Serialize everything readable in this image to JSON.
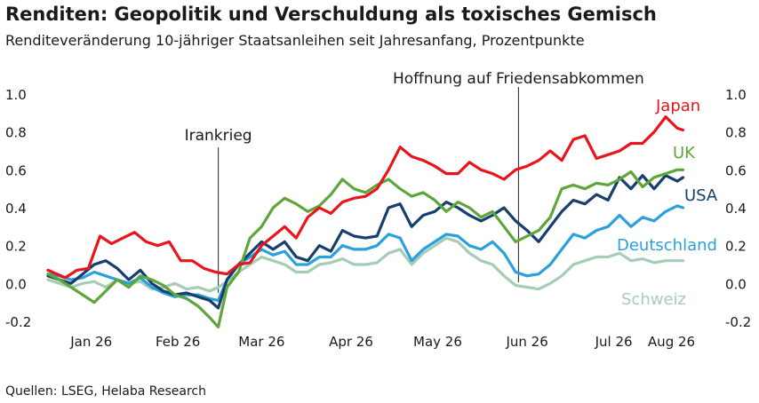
{
  "title": "Renditen: Geopolitik und Verschuldung als toxisches Gemisch",
  "subtitle": "Renditeveränderung 10-jähriger Staatsanleihen seit Jahresanfang, Prozentpunkte",
  "source": "Quellen: LSEG, Helaba Research",
  "colors": {
    "japan": "#e8151b",
    "uk": "#5ea63a",
    "usa": "#163f6e",
    "deutschland": "#2aa0dd",
    "schweiz": "#a7ccb4"
  },
  "chart_data": {
    "type": "line",
    "ylim": [
      -0.2,
      1.0
    ],
    "y_ticks": [
      "1.0",
      "0.8",
      "0.6",
      "0.4",
      "0.2",
      "0.0",
      "-0.2"
    ],
    "x_tick_labels": [
      "Jan 26",
      "Feb 26",
      "Mar 26",
      "Apr 26",
      "May 26",
      "Jun 26",
      "Jul 26",
      "Aug 26"
    ],
    "x_range_days": [
      0,
      222
    ],
    "annotations": [
      {
        "text": "Irankrieg",
        "day": 59
      },
      {
        "text": "Hoffnung auf Friedensabkommen",
        "day": 163
      }
    ],
    "series": [
      {
        "name": "Japan",
        "key": "japan",
        "x": [
          0,
          6,
          10,
          14,
          18,
          22,
          26,
          30,
          34,
          38,
          42,
          46,
          50,
          54,
          58,
          62,
          66,
          70,
          74,
          78,
          82,
          86,
          90,
          94,
          98,
          102,
          106,
          110,
          114,
          118,
          122,
          126,
          130,
          134,
          138,
          142,
          146,
          150,
          154,
          158,
          162,
          166,
          170,
          174,
          178,
          182,
          186,
          190,
          194,
          198,
          202,
          206,
          210,
          214,
          218,
          220
        ],
        "y": [
          0.07,
          0.03,
          0.07,
          0.08,
          0.25,
          0.21,
          0.24,
          0.27,
          0.22,
          0.2,
          0.22,
          0.12,
          0.12,
          0.08,
          0.06,
          0.05,
          0.1,
          0.11,
          0.2,
          0.25,
          0.3,
          0.24,
          0.35,
          0.4,
          0.37,
          0.43,
          0.45,
          0.46,
          0.5,
          0.6,
          0.72,
          0.67,
          0.65,
          0.62,
          0.58,
          0.58,
          0.64,
          0.6,
          0.58,
          0.55,
          0.6,
          0.62,
          0.65,
          0.7,
          0.65,
          0.76,
          0.78,
          0.66,
          0.68,
          0.7,
          0.74,
          0.74,
          0.8,
          0.88,
          0.82,
          0.81
        ]
      },
      {
        "name": "UK",
        "key": "uk",
        "x": [
          0,
          4,
          8,
          12,
          16,
          20,
          24,
          28,
          32,
          36,
          40,
          44,
          48,
          52,
          56,
          59,
          62,
          66,
          70,
          74,
          78,
          82,
          86,
          90,
          94,
          98,
          102,
          106,
          110,
          114,
          118,
          122,
          126,
          130,
          134,
          138,
          142,
          146,
          150,
          154,
          158,
          162,
          166,
          170,
          174,
          178,
          182,
          186,
          190,
          194,
          198,
          202,
          206,
          210,
          214,
          218,
          220
        ],
        "y": [
          0.05,
          0.02,
          -0.02,
          -0.06,
          -0.1,
          -0.04,
          0.02,
          -0.02,
          0.04,
          0.02,
          -0.01,
          -0.06,
          -0.08,
          -0.12,
          -0.18,
          -0.23,
          -0.02,
          0.06,
          0.24,
          0.3,
          0.4,
          0.45,
          0.42,
          0.38,
          0.41,
          0.47,
          0.55,
          0.5,
          0.48,
          0.52,
          0.55,
          0.5,
          0.46,
          0.48,
          0.44,
          0.38,
          0.43,
          0.4,
          0.35,
          0.38,
          0.3,
          0.22,
          0.25,
          0.28,
          0.35,
          0.5,
          0.52,
          0.5,
          0.53,
          0.52,
          0.55,
          0.59,
          0.51,
          0.56,
          0.58,
          0.6,
          0.6
        ]
      },
      {
        "name": "USA",
        "key": "usa",
        "x": [
          0,
          4,
          8,
          12,
          16,
          20,
          24,
          28,
          32,
          36,
          40,
          44,
          48,
          52,
          56,
          59,
          62,
          66,
          70,
          74,
          78,
          82,
          86,
          90,
          94,
          98,
          102,
          106,
          110,
          114,
          118,
          122,
          126,
          130,
          134,
          138,
          142,
          146,
          150,
          154,
          158,
          162,
          166,
          170,
          174,
          178,
          182,
          186,
          190,
          194,
          198,
          202,
          206,
          210,
          214,
          218,
          220
        ],
        "y": [
          0.04,
          0.02,
          0.0,
          0.05,
          0.1,
          0.12,
          0.08,
          0.02,
          0.07,
          0.0,
          -0.04,
          -0.06,
          -0.05,
          -0.07,
          -0.09,
          -0.13,
          0.02,
          0.1,
          0.16,
          0.22,
          0.18,
          0.22,
          0.14,
          0.12,
          0.2,
          0.17,
          0.28,
          0.25,
          0.24,
          0.25,
          0.4,
          0.42,
          0.3,
          0.36,
          0.38,
          0.43,
          0.4,
          0.36,
          0.33,
          0.36,
          0.4,
          0.33,
          0.28,
          0.22,
          0.3,
          0.38,
          0.44,
          0.42,
          0.47,
          0.44,
          0.56,
          0.5,
          0.57,
          0.5,
          0.57,
          0.54,
          0.56
        ]
      },
      {
        "name": "Deutschland",
        "key": "deutschland",
        "x": [
          0,
          4,
          8,
          12,
          16,
          20,
          24,
          28,
          32,
          36,
          40,
          44,
          48,
          52,
          56,
          59,
          62,
          66,
          70,
          74,
          78,
          82,
          86,
          90,
          94,
          98,
          102,
          106,
          110,
          114,
          118,
          122,
          126,
          130,
          134,
          138,
          142,
          146,
          150,
          154,
          158,
          162,
          166,
          170,
          174,
          178,
          182,
          186,
          190,
          194,
          198,
          202,
          206,
          210,
          214,
          218,
          220
        ],
        "y": [
          0.05,
          0.04,
          0.02,
          0.03,
          0.06,
          0.04,
          0.02,
          0.0,
          0.03,
          -0.02,
          -0.05,
          -0.07,
          -0.06,
          -0.06,
          -0.08,
          -0.09,
          0.02,
          0.1,
          0.14,
          0.18,
          0.15,
          0.17,
          0.1,
          0.1,
          0.14,
          0.14,
          0.2,
          0.18,
          0.18,
          0.2,
          0.26,
          0.24,
          0.12,
          0.18,
          0.22,
          0.26,
          0.25,
          0.2,
          0.18,
          0.22,
          0.16,
          0.06,
          0.04,
          0.05,
          0.1,
          0.18,
          0.26,
          0.24,
          0.28,
          0.3,
          0.36,
          0.3,
          0.35,
          0.33,
          0.38,
          0.41,
          0.4
        ]
      },
      {
        "name": "Schweiz",
        "key": "schweiz",
        "x": [
          0,
          4,
          8,
          12,
          16,
          20,
          24,
          28,
          32,
          36,
          40,
          44,
          48,
          52,
          56,
          59,
          62,
          66,
          70,
          74,
          78,
          82,
          86,
          90,
          94,
          98,
          102,
          106,
          110,
          114,
          118,
          122,
          126,
          130,
          134,
          138,
          142,
          146,
          150,
          154,
          158,
          162,
          166,
          170,
          174,
          178,
          182,
          186,
          190,
          194,
          198,
          202,
          206,
          210,
          214,
          218,
          220
        ],
        "y": [
          0.02,
          0.0,
          -0.02,
          0.0,
          0.01,
          -0.02,
          0.02,
          0.0,
          0.01,
          -0.03,
          -0.02,
          0.0,
          -0.03,
          -0.02,
          -0.04,
          -0.02,
          0.01,
          0.06,
          0.1,
          0.14,
          0.12,
          0.1,
          0.06,
          0.06,
          0.1,
          0.11,
          0.13,
          0.1,
          0.1,
          0.11,
          0.16,
          0.18,
          0.1,
          0.16,
          0.2,
          0.24,
          0.22,
          0.16,
          0.12,
          0.1,
          0.04,
          -0.01,
          -0.02,
          -0.03,
          0.0,
          0.04,
          0.1,
          0.12,
          0.14,
          0.14,
          0.16,
          0.12,
          0.13,
          0.11,
          0.12,
          0.12,
          0.12
        ]
      }
    ]
  }
}
